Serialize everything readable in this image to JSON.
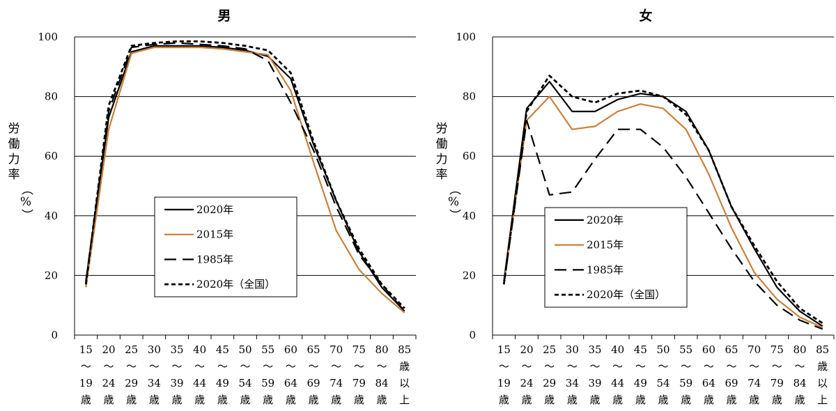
{
  "chart_data": [
    {
      "type": "line",
      "title": "男",
      "ylabel": [
        "労",
        "働",
        "力",
        "率",
        "（%）"
      ],
      "ylim": [
        0,
        100
      ],
      "yticks": [
        0,
        20,
        40,
        60,
        80,
        100
      ],
      "grid": true,
      "legend_position": "center",
      "categories": [
        [
          "15",
          "〜",
          "19",
          "歳"
        ],
        [
          "20",
          "〜",
          "24",
          "歳"
        ],
        [
          "25",
          "〜",
          "29",
          "歳"
        ],
        [
          "30",
          "〜",
          "34",
          "歳"
        ],
        [
          "35",
          "〜",
          "39",
          "歳"
        ],
        [
          "40",
          "〜",
          "44",
          "歳"
        ],
        [
          "45",
          "〜",
          "49",
          "歳"
        ],
        [
          "50",
          "〜",
          "54",
          "歳"
        ],
        [
          "55",
          "〜",
          "59",
          "歳"
        ],
        [
          "60",
          "〜",
          "64",
          "歳"
        ],
        [
          "65",
          "〜",
          "69",
          "歳"
        ],
        [
          "70",
          "〜",
          "74",
          "歳"
        ],
        [
          "75",
          "〜",
          "79",
          "歳"
        ],
        [
          "80",
          "〜",
          "84",
          "歳"
        ],
        [
          "85",
          "歳",
          "以",
          "上"
        ]
      ],
      "series": [
        {
          "name": "2020年",
          "style": "solid",
          "color": "#000000",
          "values": [
            18,
            73,
            95,
            97,
            97,
            97,
            96.5,
            95.5,
            93.5,
            86,
            64,
            45,
            28,
            16,
            8
          ]
        },
        {
          "name": "2015年",
          "style": "solid",
          "color": "#c8803a",
          "values": [
            16,
            69,
            94.5,
            96.5,
            96.5,
            96.5,
            96,
            95,
            94,
            82,
            58,
            35,
            22,
            14,
            7.5
          ]
        },
        {
          "name": "1985年",
          "style": "dash",
          "color": "#000000",
          "values": [
            18,
            75,
            96.5,
            97.5,
            98,
            97.5,
            97,
            96,
            92,
            78,
            62,
            43,
            27,
            17,
            8
          ]
        },
        {
          "name": "2020年（全国）",
          "style": "dot",
          "color": "#000000",
          "values": [
            17,
            77,
            97,
            98,
            98.5,
            98.5,
            98,
            97,
            95.5,
            88,
            65,
            45,
            29,
            17,
            9
          ]
        }
      ]
    },
    {
      "type": "line",
      "title": "女",
      "ylabel": [
        "労",
        "働",
        "力",
        "率",
        "（%）"
      ],
      "ylim": [
        0,
        100
      ],
      "yticks": [
        0,
        20,
        40,
        60,
        80,
        100
      ],
      "grid": true,
      "legend_position": "bottom-left",
      "categories": [
        [
          "15",
          "〜",
          "19",
          "歳"
        ],
        [
          "20",
          "〜",
          "24",
          "歳"
        ],
        [
          "25",
          "〜",
          "29",
          "歳"
        ],
        [
          "30",
          "〜",
          "34",
          "歳"
        ],
        [
          "35",
          "〜",
          "39",
          "歳"
        ],
        [
          "40",
          "〜",
          "44",
          "歳"
        ],
        [
          "45",
          "〜",
          "49",
          "歳"
        ],
        [
          "50",
          "〜",
          "54",
          "歳"
        ],
        [
          "55",
          "〜",
          "59",
          "歳"
        ],
        [
          "60",
          "〜",
          "64",
          "歳"
        ],
        [
          "65",
          "〜",
          "69",
          "歳"
        ],
        [
          "70",
          "〜",
          "74",
          "歳"
        ],
        [
          "75",
          "〜",
          "79",
          "歳"
        ],
        [
          "80",
          "〜",
          "84",
          "歳"
        ],
        [
          "85",
          "歳",
          "以",
          "上"
        ]
      ],
      "series": [
        {
          "name": "2020年",
          "style": "solid",
          "color": "#000000",
          "values": [
            18,
            76,
            85,
            75,
            75,
            79,
            81,
            80,
            75,
            62,
            43,
            29,
            16,
            8,
            3
          ]
        },
        {
          "name": "2015年",
          "style": "solid",
          "color": "#c8803a",
          "values": [
            17,
            72,
            80,
            69,
            70,
            75,
            77.5,
            76,
            69,
            54,
            36,
            21,
            12,
            6,
            2.5
          ]
        },
        {
          "name": "1985年",
          "style": "dash",
          "color": "#000000",
          "values": [
            17,
            72,
            47,
            48,
            59,
            69,
            69,
            63,
            53,
            41,
            29,
            18,
            10,
            5,
            2
          ]
        },
        {
          "name": "2020年（全国）",
          "style": "dot",
          "color": "#000000",
          "values": [
            17,
            75,
            87,
            80,
            78,
            81,
            82,
            80,
            74,
            62,
            43,
            30,
            18,
            9,
            4
          ]
        }
      ]
    }
  ]
}
